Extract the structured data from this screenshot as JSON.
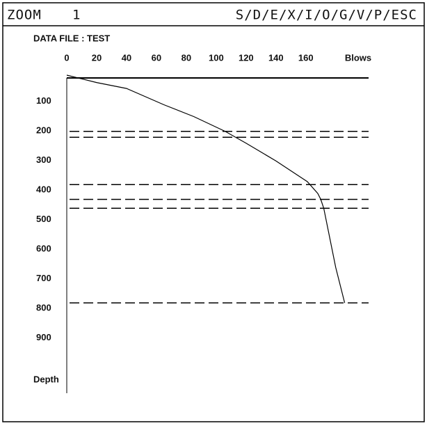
{
  "header": {
    "mode": "ZOOM",
    "level": 1,
    "menu": "S/D/E/X/I/O/G/V/P/ESC"
  },
  "file_label": "DATA FILE : TEST",
  "chart_data": {
    "type": "line",
    "xlabel": "Blows",
    "ylabel": "Depth",
    "x": [
      0,
      20,
      40,
      65,
      85,
      106,
      120,
      140,
      161,
      168,
      170,
      172,
      176,
      180,
      186
    ],
    "values": [
      0,
      25,
      45,
      100,
      140,
      190,
      230,
      290,
      360,
      400,
      420,
      450,
      550,
      650,
      770
    ],
    "color": "#000000",
    "xlim": [
      0,
      202
    ],
    "xticks": [
      0,
      20,
      40,
      60,
      80,
      100,
      120,
      140,
      160
    ],
    "ylim": [
      0,
      1000
    ],
    "yticks": [
      100,
      200,
      300,
      400,
      500,
      600,
      700,
      800,
      900
    ],
    "y_inverted": true,
    "layers": [
      190,
      210,
      370,
      420,
      450,
      770
    ]
  }
}
